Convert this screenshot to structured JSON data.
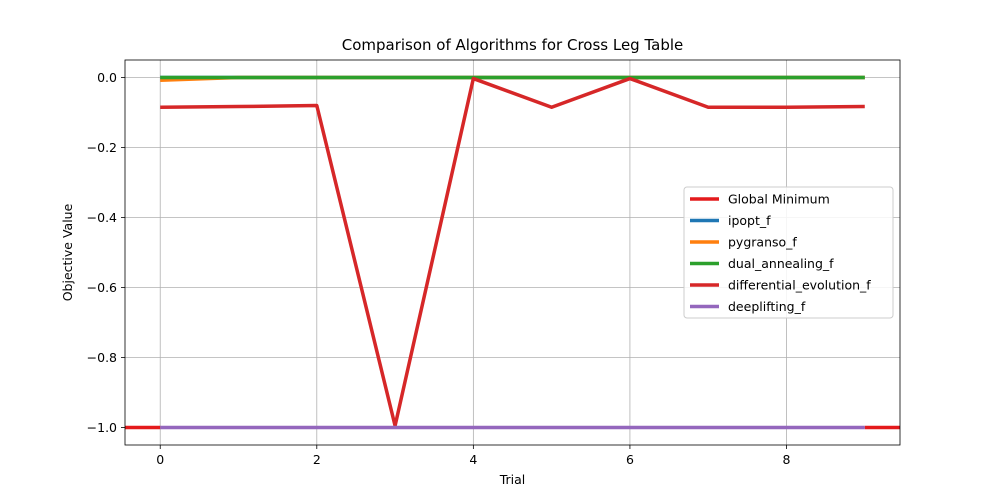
{
  "chart_data": {
    "type": "line",
    "title": "Comparison of Algorithms for Cross Leg Table",
    "xlabel": "Trial",
    "ylabel": "Objective Value",
    "xlim": [
      -0.45,
      9.45
    ],
    "ylim": [
      -1.05,
      0.05
    ],
    "x_ticks": [
      0,
      2,
      4,
      6,
      8
    ],
    "y_ticks": [
      0.0,
      -0.2,
      -0.4,
      -0.6,
      -0.8,
      -1.0
    ],
    "x_tick_labels": [
      "0",
      "2",
      "4",
      "6",
      "8"
    ],
    "y_tick_labels": [
      "0.0",
      "−0.2",
      "−0.4",
      "−0.6",
      "−0.8",
      "−1.0"
    ],
    "grid": true,
    "legend_position": "center-right",
    "global_minimum": {
      "name": "Global Minimum",
      "y": -1.0,
      "color": "#e41a1c"
    },
    "x": [
      0,
      1,
      2,
      3,
      4,
      5,
      6,
      7,
      8,
      9
    ],
    "series": [
      {
        "name": "ipopt_f",
        "color": "#1f77b4",
        "values": [
          0.0,
          0.0,
          0.0,
          0.0,
          0.0,
          0.0,
          0.0,
          0.0,
          0.0,
          0.0
        ]
      },
      {
        "name": "pygranso_f",
        "color": "#ff7f0e",
        "values": [
          -0.008,
          0.0,
          0.0,
          0.0,
          0.0,
          0.0,
          0.0,
          0.0,
          0.0,
          0.0
        ]
      },
      {
        "name": "dual_annealing_f",
        "color": "#2ca02c",
        "values": [
          0.0,
          0.0,
          0.0,
          0.0,
          0.0,
          0.0,
          0.0,
          0.0,
          0.0,
          0.0
        ]
      },
      {
        "name": "differential_evolution_f",
        "color": "#d62728",
        "values": [
          -0.085,
          -0.083,
          -0.08,
          -0.995,
          -0.003,
          -0.085,
          -0.003,
          -0.085,
          -0.085,
          -0.083
        ]
      },
      {
        "name": "deeplifting_f",
        "color": "#9467bd",
        "values": [
          -1.0,
          -1.0,
          -1.0,
          -1.0,
          -1.0,
          -1.0,
          -1.0,
          -1.0,
          -1.0,
          -1.0
        ]
      }
    ]
  }
}
